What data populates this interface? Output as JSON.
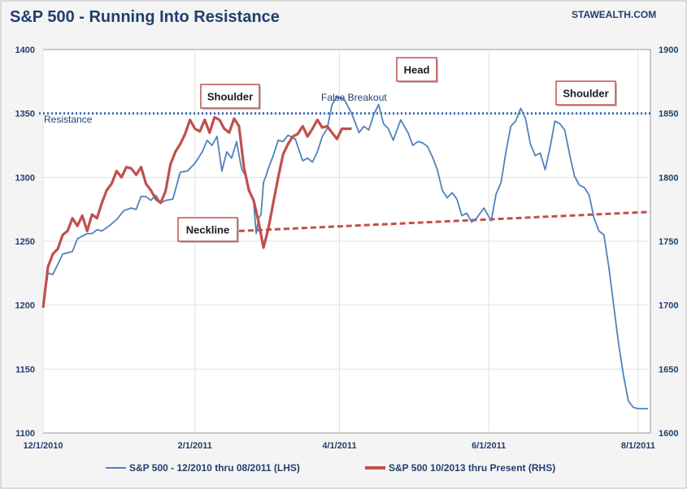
{
  "header": {
    "title": "S&P 500 - Running Into Resistance",
    "site": "STAWEALTH.COM"
  },
  "colors": {
    "blue": "#4f81bd",
    "red": "#c0504d",
    "resistance": "#3f6fb5",
    "neckline": "#c0504d",
    "text": "#1f3f6e"
  },
  "chart_data": {
    "type": "line",
    "title": "S&P 500 - Running Into Resistance",
    "x_ticks": [
      "12/1/2010",
      "2/1/2011",
      "4/1/2011",
      "6/1/2011",
      "8/1/2011"
    ],
    "y_left": {
      "lim": [
        1100,
        1400
      ],
      "ticks": [
        1100,
        1150,
        1200,
        1250,
        1300,
        1350,
        1400
      ]
    },
    "y_right": {
      "lim": [
        1600,
        1900
      ],
      "ticks": [
        1600,
        1650,
        1700,
        1750,
        1800,
        1850,
        1900
      ]
    },
    "grid": true,
    "legend": {
      "position": "bottom",
      "entries": [
        {
          "label": "S&P 500 - 12/2010 thru 08/2011 (LHS)",
          "color": "#4f81bd"
        },
        {
          "label": "S&P 500 10/2013 thru Present (RHS)",
          "color": "#c0504d"
        }
      ]
    },
    "series": [
      {
        "name": "S&P 500 - 12/2010 thru 08/2011 (LHS)",
        "axis": "left",
        "color": "#4f81bd",
        "x": [
          0,
          2,
          4,
          6,
          8,
          10,
          12,
          14,
          16,
          18,
          20,
          22,
          24,
          27,
          30,
          33,
          36,
          38,
          40,
          42,
          44,
          46,
          48,
          50,
          53,
          56,
          59,
          62,
          65,
          67,
          69,
          71,
          73,
          75,
          77,
          79,
          81,
          83,
          85,
          86,
          87,
          88,
          89,
          90,
          91,
          92,
          94,
          96,
          98,
          100,
          103,
          106,
          108,
          110,
          112,
          114,
          116,
          118,
          120,
          123,
          126,
          129,
          131,
          133,
          135,
          137,
          139,
          141,
          143,
          146,
          149,
          151,
          153,
          155,
          157,
          159,
          161,
          163,
          165,
          167,
          169,
          171,
          173,
          175,
          177,
          180,
          183,
          185,
          187,
          189,
          191,
          193,
          195,
          197,
          199,
          201,
          203,
          205,
          207,
          209,
          211,
          213,
          215,
          217,
          219,
          221,
          223,
          225,
          227,
          229,
          231,
          233,
          235,
          237,
          239,
          241,
          243,
          244,
          245,
          246,
          247
        ],
        "values": [
          1198,
          1225,
          1224,
          1232,
          1240,
          1241,
          1242,
          1252,
          1254,
          1256,
          1256,
          1259,
          1258,
          1262,
          1267,
          1274,
          1276,
          1275,
          1285,
          1285,
          1282,
          1286,
          1280,
          1282,
          1283,
          1304,
          1305,
          1311,
          1320,
          1329,
          1325,
          1332,
          1305,
          1320,
          1315,
          1328,
          1307,
          1300,
          1285,
          1281,
          1256,
          1268,
          1271,
          1296,
          1301,
          1307,
          1317,
          1329,
          1328,
          1333,
          1330,
          1313,
          1315,
          1312,
          1320,
          1332,
          1338,
          1357,
          1363,
          1361,
          1350,
          1335,
          1340,
          1337,
          1349,
          1357,
          1342,
          1338,
          1329,
          1345,
          1335,
          1325,
          1328,
          1327,
          1324,
          1316,
          1306,
          1290,
          1284,
          1288,
          1283,
          1270,
          1272,
          1265,
          1268,
          1276,
          1266,
          1287,
          1296,
          1320,
          1340,
          1344,
          1354,
          1346,
          1326,
          1317,
          1319,
          1306,
          1323,
          1344,
          1342,
          1337,
          1318,
          1301,
          1294,
          1292,
          1286,
          1268,
          1258,
          1255,
          1230,
          1200,
          1170,
          1145,
          1125,
          1120,
          1119,
          1119,
          1119,
          1119,
          1119
        ]
      },
      {
        "name": "S&P 500 10/2013 thru Present (RHS)",
        "axis": "right",
        "color": "#c0504d",
        "x": [
          0,
          2,
          4,
          6,
          8,
          10,
          12,
          14,
          16,
          18,
          20,
          22,
          24,
          26,
          28,
          30,
          32,
          34,
          36,
          38,
          40,
          42,
          44,
          46,
          48,
          50,
          52,
          54,
          56,
          58,
          60,
          62,
          64,
          66,
          68,
          70,
          72,
          74,
          76,
          78,
          80,
          82,
          84,
          86,
          88,
          90,
          92,
          94,
          96,
          98,
          100,
          102,
          104,
          106,
          108,
          110,
          112,
          114,
          116,
          118,
          120,
          122,
          124,
          126
        ],
        "values": [
          1698,
          1730,
          1740,
          1744,
          1755,
          1758,
          1768,
          1762,
          1770,
          1758,
          1771,
          1768,
          1780,
          1790,
          1795,
          1805,
          1800,
          1808,
          1807,
          1802,
          1808,
          1795,
          1790,
          1783,
          1780,
          1789,
          1810,
          1820,
          1826,
          1834,
          1845,
          1838,
          1836,
          1845,
          1835,
          1847,
          1845,
          1838,
          1835,
          1846,
          1840,
          1808,
          1790,
          1782,
          1765,
          1745,
          1760,
          1780,
          1800,
          1818,
          1826,
          1832,
          1834,
          1840,
          1832,
          1838,
          1845,
          1839,
          1840,
          1835,
          1830,
          1838,
          1838,
          1838
        ]
      }
    ],
    "annotations": [
      {
        "label": "Shoulder",
        "boxed": true
      },
      {
        "label": "Head",
        "boxed": true
      },
      {
        "label": "Shoulder",
        "boxed": true
      },
      {
        "label": "Neckline",
        "boxed": true
      },
      {
        "label": "False Breakout",
        "boxed": false
      },
      {
        "label": "Resistance",
        "boxed": false
      }
    ],
    "resistance_level": 1350,
    "neckline": {
      "start": {
        "x": 80,
        "y": 1258
      },
      "end": {
        "x": 248,
        "y": 1273
      }
    }
  }
}
